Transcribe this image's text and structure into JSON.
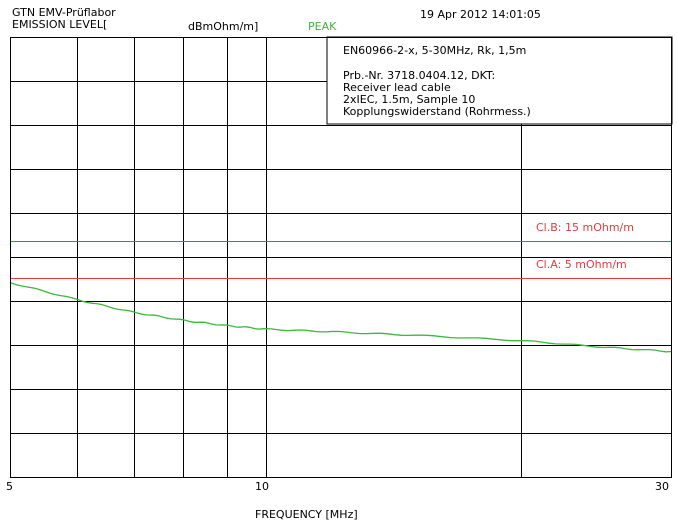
{
  "header": {
    "lab": "GTN EMV-Prüflabor",
    "level_label": "EMISSION LEVEL[",
    "unit": "dBmOhm/m]",
    "detector": "PEAK",
    "timestamp": "19 Apr 2012  14:01:05"
  },
  "info": {
    "line1": "EN60966-2-x, 5-30MHz, Rk, 1,5m",
    "line2": "Prb.-Nr. 3718.0404.12, DKT:",
    "line3": "Receiver lead cable",
    "line4": "2xIEC, 1.5m, Sample 10",
    "line5": "Kopplungswiderstand (Rohrmess.)"
  },
  "colors": {
    "trace": "#3cb83c",
    "limit": "#e03c3c",
    "grid": "#000000"
  },
  "chart_data": {
    "type": "line",
    "xlabel": "FREQUENCY [MHz]",
    "ylabel": "EMISSION LEVEL[dBmOhm/m]",
    "x_scale": "log",
    "xlim": [
      5,
      30
    ],
    "x_ticks": [
      5,
      10,
      30
    ],
    "x_tick_labels": [
      "5",
      "10",
      "30"
    ],
    "grid": true,
    "series": [
      {
        "name": "PEAK",
        "x": [
          5,
          6,
          7,
          8,
          9,
          10,
          12,
          15,
          20,
          25,
          30
        ],
        "y": [
          0.558,
          0.597,
          0.626,
          0.644,
          0.656,
          0.664,
          0.67,
          0.678,
          0.69,
          0.705,
          0.715
        ]
      }
    ],
    "limits": [
      {
        "label": "Cl.B: 15 mOhm/m",
        "y": 0.463
      },
      {
        "label": "Cl.A:  5 mOhm/m",
        "y": 0.548
      }
    ]
  }
}
